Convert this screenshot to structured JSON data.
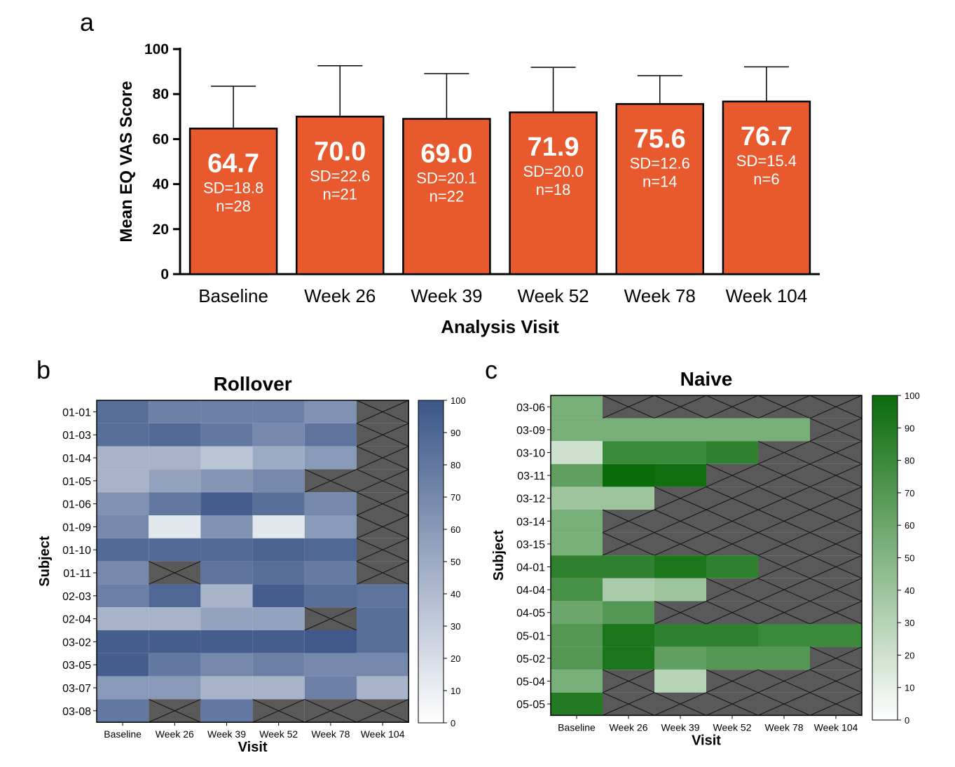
{
  "chart_data": [
    {
      "panel": "a",
      "type": "bar",
      "title": "",
      "xlabel": "Analysis Visit",
      "ylabel": "Mean EQ VAS Score",
      "ylim": [
        0,
        100
      ],
      "yticks": [
        "0",
        "20",
        "40",
        "60",
        "80",
        "100"
      ],
      "categories": [
        "Baseline",
        "Week 26",
        "Week 39",
        "Week 52",
        "Week 78",
        "Week 104"
      ],
      "values": [
        64.7,
        70.0,
        69.0,
        71.9,
        75.6,
        76.7
      ],
      "value_labels": [
        "64.7",
        "70.0",
        "69.0",
        "71.9",
        "75.6",
        "76.7"
      ],
      "sd": [
        18.8,
        22.6,
        20.1,
        20.0,
        12.6,
        15.4
      ],
      "sd_labels": [
        "SD=18.8",
        "SD=22.6",
        "SD=20.1",
        "SD=20.0",
        "SD=12.6",
        "SD=15.4"
      ],
      "n_labels": [
        "n=28",
        "n=21",
        "n=22",
        "n=18",
        "n=14",
        "n=6"
      ],
      "bar_color": "#e85a2e",
      "grid": false
    },
    {
      "panel": "b",
      "type": "heatmap",
      "title": "Rollover",
      "xlabel": "Visit",
      "ylabel": "Subject",
      "x": [
        "Baseline",
        "Week 26",
        "Week 39",
        "Week 52",
        "Week 78",
        "Week 104"
      ],
      "y": [
        "01-01",
        "01-03",
        "01-04",
        "01-05",
        "01-06",
        "01-09",
        "01-10",
        "01-11",
        "02-03",
        "02-04",
        "03-02",
        "03-05",
        "03-07",
        "03-08"
      ],
      "values": [
        [
          85,
          75,
          75,
          75,
          65,
          null
        ],
        [
          85,
          88,
          80,
          70,
          82,
          null
        ],
        [
          45,
          45,
          35,
          50,
          60,
          null
        ],
        [
          45,
          55,
          62,
          70,
          null,
          null
        ],
        [
          65,
          80,
          95,
          85,
          70,
          null
        ],
        [
          70,
          15,
          65,
          15,
          60,
          null
        ],
        [
          88,
          88,
          88,
          92,
          90,
          null
        ],
        [
          70,
          null,
          82,
          85,
          78,
          null
        ],
        [
          75,
          90,
          45,
          95,
          85,
          82
        ],
        [
          45,
          45,
          55,
          55,
          null,
          85
        ],
        [
          95,
          95,
          95,
          95,
          98,
          85
        ],
        [
          95,
          80,
          70,
          75,
          70,
          70
        ],
        [
          60,
          60,
          45,
          45,
          75,
          45
        ],
        [
          80,
          null,
          80,
          null,
          null,
          null
        ]
      ],
      "colorbar": {
        "min": 0,
        "max": 100,
        "ticks": [
          "0",
          "10",
          "20",
          "30",
          "40",
          "50",
          "60",
          "70",
          "80",
          "90",
          "100"
        ],
        "low_color": "#ffffff",
        "high_color": "#3b5688"
      },
      "missing_color": "#595959"
    },
    {
      "panel": "c",
      "type": "heatmap",
      "title": "Naive",
      "xlabel": "Visit",
      "ylabel": "Subject",
      "x": [
        "Baseline",
        "Week 26",
        "Week 39",
        "Week 52",
        "Week 78",
        "Week 104"
      ],
      "y": [
        "03-06",
        "03-09",
        "03-10",
        "03-11",
        "03-12",
        "03-14",
        "03-15",
        "04-01",
        "04-04",
        "04-05",
        "05-01",
        "05-02",
        "05-04",
        "05-05"
      ],
      "values": [
        [
          55,
          null,
          null,
          null,
          null,
          null
        ],
        [
          55,
          55,
          55,
          55,
          55,
          null
        ],
        [
          20,
          80,
          80,
          85,
          null,
          null
        ],
        [
          65,
          100,
          97,
          null,
          null,
          null
        ],
        [
          40,
          40,
          null,
          null,
          null,
          null
        ],
        [
          55,
          null,
          null,
          null,
          null,
          null
        ],
        [
          55,
          null,
          null,
          null,
          null,
          null
        ],
        [
          85,
          85,
          93,
          85,
          null,
          null
        ],
        [
          75,
          35,
          40,
          null,
          null,
          null
        ],
        [
          60,
          70,
          null,
          null,
          null,
          null
        ],
        [
          70,
          93,
          85,
          85,
          80,
          80
        ],
        [
          70,
          93,
          65,
          70,
          70,
          null
        ],
        [
          55,
          null,
          30,
          null,
          null,
          null
        ],
        [
          90,
          null,
          null,
          null,
          null,
          null
        ]
      ],
      "colorbar": {
        "min": 0,
        "max": 100,
        "ticks": [
          "0",
          "10",
          "20",
          "30",
          "40",
          "50",
          "60",
          "70",
          "80",
          "90",
          "100"
        ],
        "low_color": "#ffffff",
        "high_color": "#0a6b0a"
      },
      "missing_color": "#595959"
    }
  ],
  "panel_letters": [
    "a",
    "b",
    "c"
  ]
}
